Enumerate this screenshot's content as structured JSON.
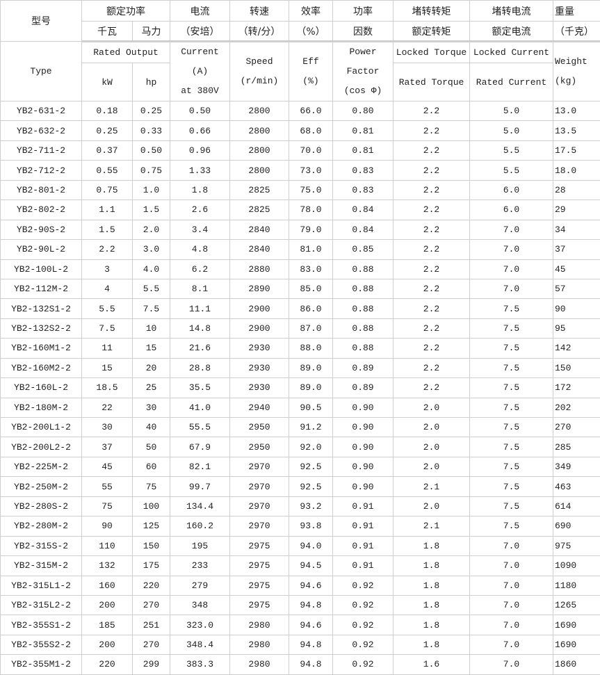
{
  "header_cn": {
    "type": "型号",
    "rated_power": "额定功率",
    "kw": "千瓦",
    "hp": "马力",
    "current": "电流",
    "current_unit": "（安培）",
    "speed": "转速",
    "speed_unit": "（转/分）",
    "eff": "效率",
    "eff_unit": "（%）",
    "pf1": "功率",
    "pf2": "因数",
    "lt1": "堵转转矩",
    "lt2": "额定转矩",
    "lc1": "堵转电流",
    "lc2": "额定电流",
    "weight": "重量",
    "weight_unit": "（千克）"
  },
  "header_en": {
    "type": "Type",
    "rated_output": "Rated Output",
    "kw": "kW",
    "hp": "hp",
    "current1": "Current",
    "current2": "(A)",
    "current3": "at 380V",
    "speed1": "Speed",
    "speed2": "(r/min)",
    "eff1": "Eff",
    "eff2": "(%)",
    "pf1": "Power",
    "pf2": "Factor",
    "pf3": "(cos Φ)",
    "lt1": "Locked Torque",
    "lt2": "Rated Torque",
    "lc1": "Locked Current",
    "lc2": "Rated Current",
    "weight1": "Weight",
    "weight2": "(kg)"
  },
  "rows": [
    [
      "YB2-631-2",
      "0.18",
      "0.25",
      "0.50",
      "2800",
      "66.0",
      "0.80",
      "2.2",
      "5.0",
      "13.0"
    ],
    [
      "YB2-632-2",
      "0.25",
      "0.33",
      "0.66",
      "2800",
      "68.0",
      "0.81",
      "2.2",
      "5.0",
      "13.5"
    ],
    [
      "YB2-711-2",
      "0.37",
      "0.50",
      "0.96",
      "2800",
      "70.0",
      "0.81",
      "2.2",
      "5.5",
      "17.5"
    ],
    [
      "YB2-712-2",
      "0.55",
      "0.75",
      "1.33",
      "2800",
      "73.0",
      "0.83",
      "2.2",
      "5.5",
      "18.0"
    ],
    [
      "YB2-801-2",
      "0.75",
      "1.0",
      "1.8",
      "2825",
      "75.0",
      "0.83",
      "2.2",
      "6.0",
      "28"
    ],
    [
      "YB2-802-2",
      "1.1",
      "1.5",
      "2.6",
      "2825",
      "78.0",
      "0.84",
      "2.2",
      "6.0",
      "29"
    ],
    [
      "YB2-90S-2",
      "1.5",
      "2.0",
      "3.4",
      "2840",
      "79.0",
      "0.84",
      "2.2",
      "7.0",
      "34"
    ],
    [
      "YB2-90L-2",
      "2.2",
      "3.0",
      "4.8",
      "2840",
      "81.0",
      "0.85",
      "2.2",
      "7.0",
      "37"
    ],
    [
      "YB2-100L-2",
      "3",
      "4.0",
      "6.2",
      "2880",
      "83.0",
      "0.88",
      "2.2",
      "7.0",
      "45"
    ],
    [
      "YB2-112M-2",
      "4",
      "5.5",
      "8.1",
      "2890",
      "85.0",
      "0.88",
      "2.2",
      "7.0",
      "57"
    ],
    [
      "YB2-132S1-2",
      "5.5",
      "7.5",
      "11.1",
      "2900",
      "86.0",
      "0.88",
      "2.2",
      "7.5",
      "90"
    ],
    [
      "YB2-132S2-2",
      "7.5",
      "10",
      "14.8",
      "2900",
      "87.0",
      "0.88",
      "2.2",
      "7.5",
      "95"
    ],
    [
      "YB2-160M1-2",
      "11",
      "15",
      "21.6",
      "2930",
      "88.0",
      "0.88",
      "2.2",
      "7.5",
      "142"
    ],
    [
      "YB2-160M2-2",
      "15",
      "20",
      "28.8",
      "2930",
      "89.0",
      "0.89",
      "2.2",
      "7.5",
      "150"
    ],
    [
      "YB2-160L-2",
      "18.5",
      "25",
      "35.5",
      "2930",
      "89.0",
      "0.89",
      "2.2",
      "7.5",
      "172"
    ],
    [
      "YB2-180M-2",
      "22",
      "30",
      "41.0",
      "2940",
      "90.5",
      "0.90",
      "2.0",
      "7.5",
      "202"
    ],
    [
      "YB2-200L1-2",
      "30",
      "40",
      "55.5",
      "2950",
      "91.2",
      "0.90",
      "2.0",
      "7.5",
      "270"
    ],
    [
      "YB2-200L2-2",
      "37",
      "50",
      "67.9",
      "2950",
      "92.0",
      "0.90",
      "2.0",
      "7.5",
      "285"
    ],
    [
      "YB2-225M-2",
      "45",
      "60",
      "82.1",
      "2970",
      "92.5",
      "0.90",
      "2.0",
      "7.5",
      "349"
    ],
    [
      "YB2-250M-2",
      "55",
      "75",
      "99.7",
      "2970",
      "92.5",
      "0.90",
      "2.1",
      "7.5",
      "463"
    ],
    [
      "YB2-280S-2",
      "75",
      "100",
      "134.4",
      "2970",
      "93.2",
      "0.91",
      "2.0",
      "7.5",
      "614"
    ],
    [
      "YB2-280M-2",
      "90",
      "125",
      "160.2",
      "2970",
      "93.8",
      "0.91",
      "2.1",
      "7.5",
      "690"
    ],
    [
      "YB2-315S-2",
      "110",
      "150",
      "195",
      "2975",
      "94.0",
      "0.91",
      "1.8",
      "7.0",
      "975"
    ],
    [
      "YB2-315M-2",
      "132",
      "175",
      "233",
      "2975",
      "94.5",
      "0.91",
      "1.8",
      "7.0",
      "1090"
    ],
    [
      "YB2-315L1-2",
      "160",
      "220",
      "279",
      "2975",
      "94.6",
      "0.92",
      "1.8",
      "7.0",
      "1180"
    ],
    [
      "YB2-315L2-2",
      "200",
      "270",
      "348",
      "2975",
      "94.8",
      "0.92",
      "1.8",
      "7.0",
      "1265"
    ],
    [
      "YB2-355S1-2",
      "185",
      "251",
      "323.0",
      "2980",
      "94.6",
      "0.92",
      "1.8",
      "7.0",
      "1690"
    ],
    [
      "YB2-355S2-2",
      "200",
      "270",
      "348.4",
      "2980",
      "94.8",
      "0.92",
      "1.8",
      "7.0",
      "1690"
    ],
    [
      "YB2-355M1-2",
      "220",
      "299",
      "383.3",
      "2980",
      "94.8",
      "0.92",
      "1.6",
      "7.0",
      "1860"
    ]
  ]
}
